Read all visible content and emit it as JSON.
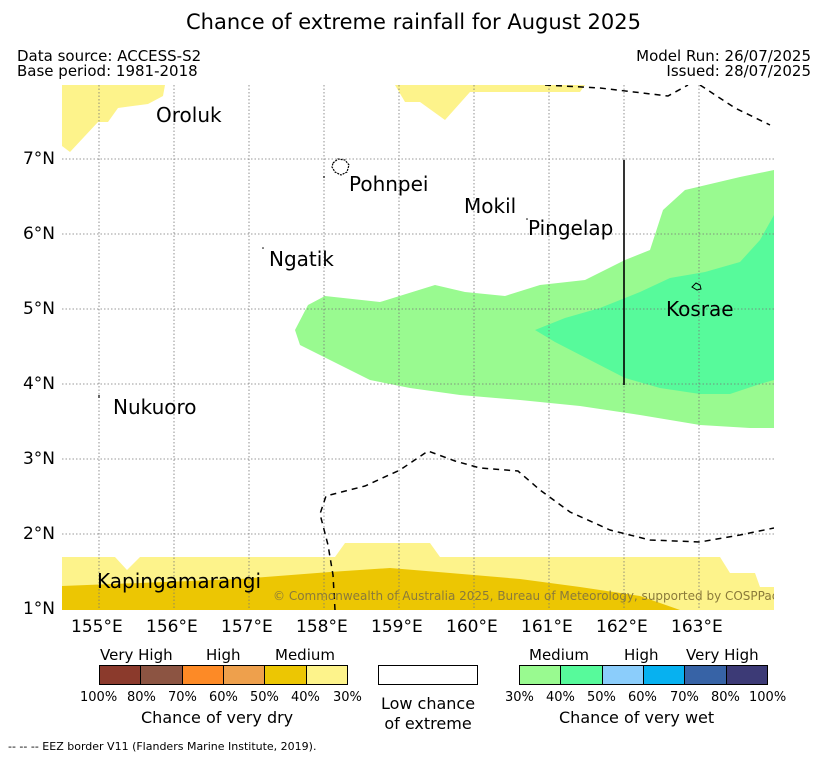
{
  "title": "Chance of extreme rainfall for August 2025",
  "header": {
    "data_source": "Data source: ACCESS-S2",
    "base_period": "Base period: 1981-2018",
    "model_run": "Model Run: 26/07/2025",
    "issued": "Issued: 28/07/2025"
  },
  "map": {
    "places": {
      "oroluk": "Oroluk",
      "pohnpei": "Pohnpei",
      "mokil": "Mokil",
      "pingelap": "Pingelap",
      "ngatik": "Ngatik",
      "kosrae": "Kosrae",
      "nukuoro": "Nukuoro",
      "kapingamarangi": "Kapingamarangi"
    },
    "lat_ticks": [
      "7°N",
      "6°N",
      "5°N",
      "4°N",
      "3°N",
      "2°N",
      "1°N"
    ],
    "lon_ticks": [
      "155°E",
      "156°E",
      "157°E",
      "158°E",
      "159°E",
      "160°E",
      "161°E",
      "162°E",
      "163°E"
    ],
    "copyright": "© Commonwealth of Australia 2025, Bureau of Meteorology, supported by COSPPac",
    "colors": {
      "dry_30_40": "#fdf38b",
      "dry_40_50": "#ecc603",
      "wet_30_40": "#99fa90",
      "wet_40_50": "#57fa9b"
    }
  },
  "legend": {
    "dry": {
      "very_high": "Very High",
      "high": "High",
      "medium": "Medium",
      "caption": "Chance of very dry",
      "percents": [
        "100%",
        "80%",
        "70%",
        "60%",
        "50%",
        "40%",
        "30%"
      ],
      "colors": [
        "#8b3a2c",
        "#8c5442",
        "#fd8a26",
        "#eea04c",
        "#ecc603",
        "#fdf38b"
      ]
    },
    "low": {
      "line1": "Low chance",
      "line2": "of extreme"
    },
    "wet": {
      "medium": "Medium",
      "high": "High",
      "very_high": "Very High",
      "caption": "Chance of very wet",
      "percents": [
        "30%",
        "40%",
        "50%",
        "60%",
        "70%",
        "80%",
        "100%"
      ],
      "colors": [
        "#99fa90",
        "#57fa9b",
        "#8bcdfb",
        "#07b1f0",
        "#3763a6",
        "#3c3a76"
      ]
    }
  },
  "footer": "--  --  -- EEZ border V11 (Flanders Marine Institute, 2019)."
}
